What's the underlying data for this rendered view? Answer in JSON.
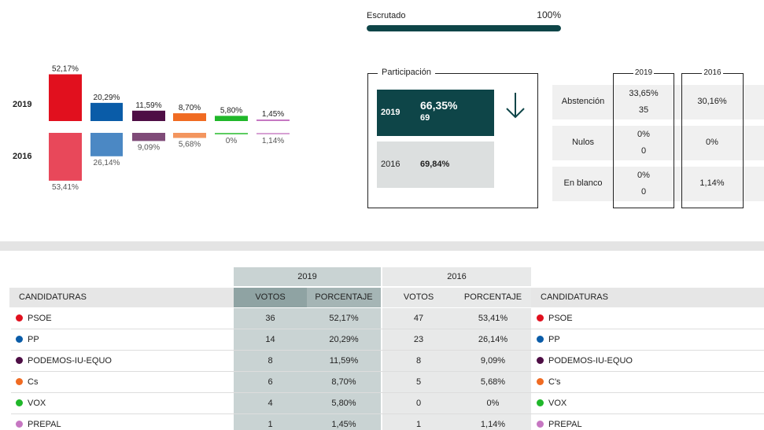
{
  "escrutado": {
    "label": "Escrutado",
    "value": "100%",
    "fraction": 1.0
  },
  "chart_data": {
    "type": "bar",
    "categories": [
      "PSOE",
      "PP",
      "PODEMOS-IU-EQUO",
      "Cs",
      "VOX",
      "PREPAL"
    ],
    "series": [
      {
        "name": "2019",
        "values": [
          52.17,
          20.29,
          11.59,
          8.7,
          5.8,
          1.45
        ],
        "labels": [
          "52,17%",
          "20,29%",
          "11,59%",
          "8,70%",
          "5,80%",
          "1,45%"
        ]
      },
      {
        "name": "2016",
        "values": [
          53.41,
          26.14,
          9.09,
          5.68,
          0,
          1.14
        ],
        "labels": [
          "53,41%",
          "26,14%",
          "9,09%",
          "5,68%",
          "0%",
          "1,14%"
        ]
      }
    ],
    "colors_2019": [
      "#e1101e",
      "#0a5ca8",
      "#4e0e45",
      "#f06b22",
      "#20b72a",
      "#c677c2"
    ],
    "colors_2016": [
      "#e8485a",
      "#4b88c4",
      "#7f4b78",
      "#f3955e",
      "#5ccc60",
      "#d7a1d4"
    ]
  },
  "participacion": {
    "legend": "Participación",
    "r2019": {
      "year": "2019",
      "pct": "66,35%",
      "num": "69"
    },
    "r2016": {
      "year": "2016",
      "pct": "69,84%"
    }
  },
  "abstencion": {
    "year_2019": "2019",
    "year_2016": "2016",
    "rows": [
      {
        "label": "Abstención",
        "v2019a": "33,65%",
        "v2019b": "35",
        "v2016": "30,16%"
      },
      {
        "label": "Nulos",
        "v2019a": "0%",
        "v2019b": "0",
        "v2016": "0%"
      },
      {
        "label": "En blanco",
        "v2019a": "0%",
        "v2019b": "0",
        "v2016": "1,14%"
      }
    ]
  },
  "table": {
    "year_2019": "2019",
    "year_2016": "2016",
    "headers": {
      "candidaturas": "CANDIDATURAS",
      "votos": "VOTOS",
      "porcentaje": "PORCENTAJE"
    },
    "rows": [
      {
        "name": "PSOE",
        "v19": "36",
        "p19": "52,17%",
        "v16": "47",
        "p16": "53,41%",
        "name16": "PSOE",
        "color": "#e1101e"
      },
      {
        "name": "PP",
        "v19": "14",
        "p19": "20,29%",
        "v16": "23",
        "p16": "26,14%",
        "name16": "PP",
        "color": "#0a5ca8"
      },
      {
        "name": "PODEMOS-IU-EQUO",
        "v19": "8",
        "p19": "11,59%",
        "v16": "8",
        "p16": "9,09%",
        "name16": "PODEMOS-IU-EQUO",
        "color": "#4e0e45"
      },
      {
        "name": "Cs",
        "v19": "6",
        "p19": "8,70%",
        "v16": "5",
        "p16": "5,68%",
        "name16": "C's",
        "color": "#f06b22"
      },
      {
        "name": "VOX",
        "v19": "4",
        "p19": "5,80%",
        "v16": "0",
        "p16": "0%",
        "name16": "VOX",
        "color": "#20b72a"
      },
      {
        "name": "PREPAL",
        "v19": "1",
        "p19": "1,45%",
        "v16": "1",
        "p16": "1,14%",
        "name16": "PREPAL",
        "color": "#c677c2"
      }
    ]
  }
}
